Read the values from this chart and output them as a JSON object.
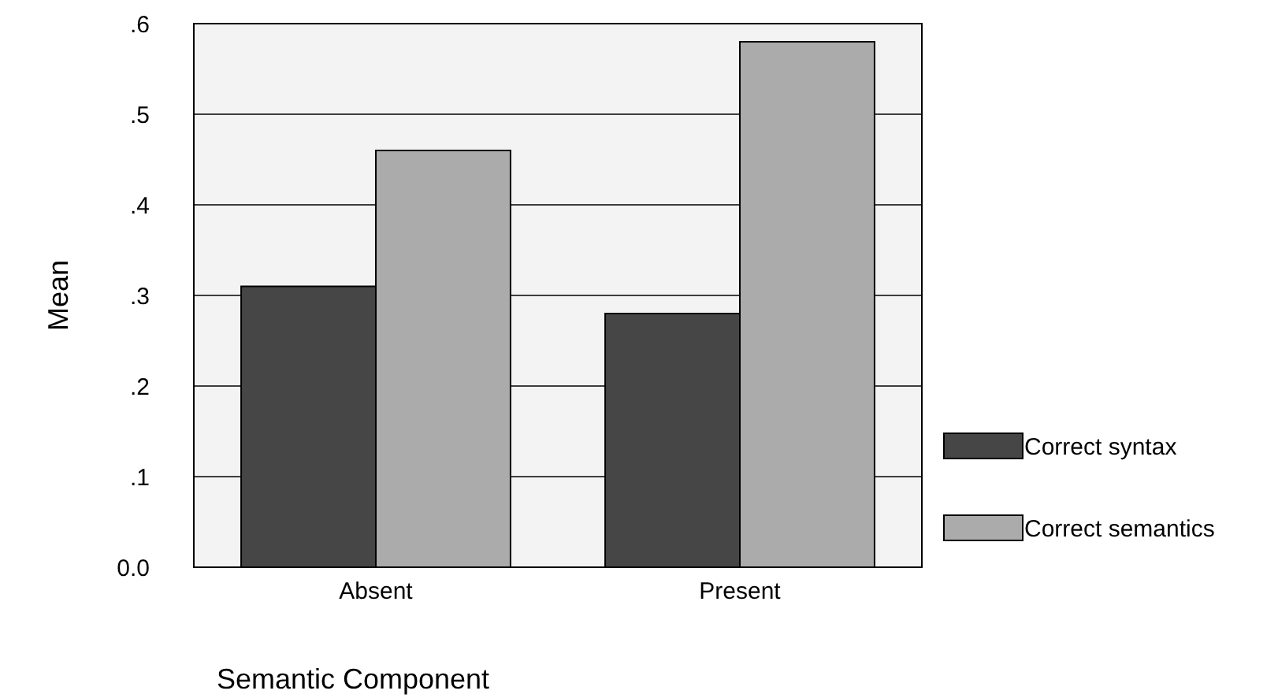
{
  "chart_data": {
    "type": "bar",
    "xlabel": "Semantic Component",
    "ylabel": "Mean",
    "categories": [
      "Absent",
      "Present"
    ],
    "series": [
      {
        "name": "Correct syntax",
        "color": "#464646",
        "values": [
          0.31,
          0.28
        ]
      },
      {
        "name": "Correct semantics",
        "color": "#ababab",
        "values": [
          0.46,
          0.58
        ]
      }
    ],
    "ylim": [
      0,
      0.6
    ],
    "yticks": [
      {
        "value": 0,
        "label": "0.0"
      },
      {
        "value": 0.1,
        "label": ".1"
      },
      {
        "value": 0.2,
        "label": ".2"
      },
      {
        "value": 0.3,
        "label": ".3"
      },
      {
        "value": 0.4,
        "label": ".4"
      },
      {
        "value": 0.5,
        "label": ".5"
      },
      {
        "value": 0.6,
        "label": ".6"
      }
    ],
    "grid": "y",
    "legend": "right"
  }
}
